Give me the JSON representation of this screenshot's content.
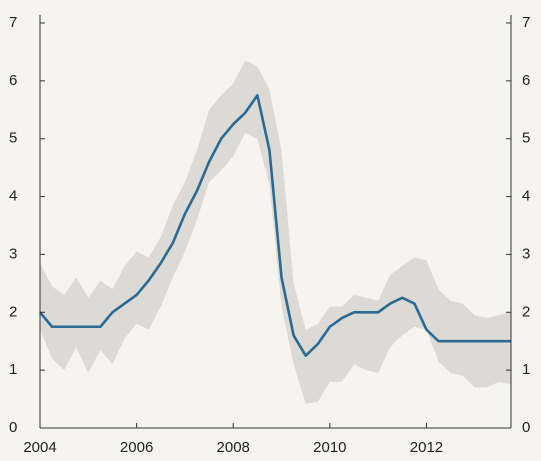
{
  "chart_data": {
    "type": "line",
    "x": [
      2004,
      2004.25,
      2004.5,
      2004.75,
      2005,
      2005.25,
      2005.5,
      2005.75,
      2006,
      2006.25,
      2006.5,
      2006.75,
      2007,
      2007.25,
      2007.5,
      2007.75,
      2008,
      2008.25,
      2008.5,
      2008.75,
      2009,
      2009.25,
      2009.5,
      2009.75,
      2010,
      2010.25,
      2010.5,
      2010.75,
      2011,
      2011.25,
      2011.5,
      2011.75,
      2012,
      2012.25,
      2012.5,
      2012.75,
      2013,
      2013.25,
      2013.5,
      2013.75
    ],
    "series": [
      {
        "color": "#2b6a94",
        "values": [
          2.0,
          1.75,
          1.75,
          1.75,
          1.75,
          1.75,
          2.0,
          2.15,
          2.3,
          2.55,
          2.85,
          3.2,
          3.7,
          4.1,
          4.6,
          5.0,
          5.25,
          5.45,
          5.75,
          4.8,
          2.6,
          1.6,
          1.25,
          1.45,
          1.75,
          1.9,
          2.0,
          2.0,
          2.0,
          2.15,
          2.25,
          2.15,
          1.7,
          1.5,
          1.5,
          1.5,
          1.5,
          1.5,
          1.5,
          1.5
        ]
      }
    ],
    "band": {
      "color": "#dcdad5",
      "lower": [
        1.7,
        1.2,
        1.0,
        1.4,
        0.95,
        1.35,
        1.1,
        1.55,
        1.8,
        1.7,
        2.1,
        2.6,
        3.05,
        3.6,
        4.25,
        4.45,
        4.7,
        5.1,
        5.0,
        4.2,
        2.1,
        1.1,
        0.42,
        0.45,
        0.8,
        0.8,
        1.1,
        1.0,
        0.95,
        1.4,
        1.6,
        1.75,
        1.7,
        1.15,
        0.95,
        0.9,
        0.7,
        0.7,
        0.8,
        0.75
      ],
      "upper": [
        2.85,
        2.45,
        2.3,
        2.6,
        2.25,
        2.55,
        2.4,
        2.8,
        3.05,
        2.95,
        3.3,
        3.85,
        4.25,
        4.8,
        5.5,
        5.75,
        5.95,
        6.35,
        6.25,
        5.85,
        4.8,
        2.5,
        1.7,
        1.8,
        2.1,
        2.1,
        2.3,
        2.25,
        2.2,
        2.65,
        2.8,
        2.95,
        2.9,
        2.4,
        2.2,
        2.15,
        1.95,
        1.9,
        1.95,
        2.0
      ]
    },
    "xlim": [
      2004,
      2013.75
    ],
    "xticks": [
      2004,
      2006,
      2008,
      2010,
      2012
    ],
    "ylim": [
      0,
      7
    ],
    "yticks": [
      0,
      1,
      2,
      3,
      4,
      5,
      6,
      7
    ],
    "y2lim": [
      0,
      7
    ],
    "y2ticks": [
      0,
      1,
      2,
      3,
      4,
      5,
      6,
      7
    ]
  }
}
